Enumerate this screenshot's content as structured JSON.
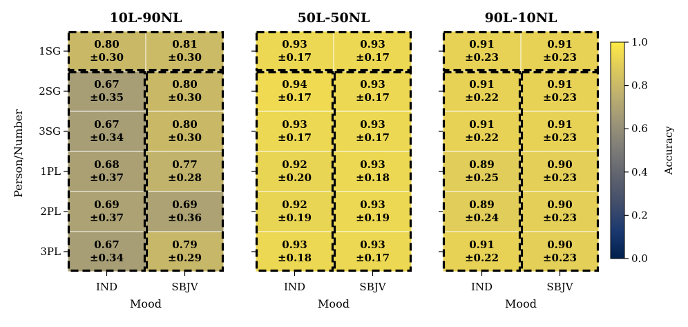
{
  "chart_data": {
    "type": "heatmap",
    "ylabel": "Person/Number",
    "xlabel": "Mood",
    "colorbar": {
      "label": "Accuracy",
      "range": [
        0.0,
        1.0
      ],
      "ticks": [
        "0.0",
        "0.2",
        "0.4",
        "0.6",
        "0.8",
        "1.0"
      ],
      "tick_values": [
        0.0,
        0.2,
        0.4,
        0.6,
        0.8,
        1.0
      ],
      "colormap": "cividis"
    },
    "rows": [
      "1SG",
      "2SG",
      "3SG",
      "1PL",
      "2PL",
      "3PL"
    ],
    "columns": [
      "IND",
      "SBJV"
    ],
    "panels": [
      {
        "title": "10L-90NL",
        "means": [
          [
            0.8,
            0.81
          ],
          [
            0.67,
            0.8
          ],
          [
            0.67,
            0.8
          ],
          [
            0.68,
            0.77
          ],
          [
            0.69,
            0.69
          ],
          [
            0.67,
            0.79
          ]
        ],
        "cells": [
          [
            [
              "0.80",
              "±0.30"
            ],
            [
              "0.81",
              "±0.30"
            ]
          ],
          [
            [
              "0.67",
              "±0.35"
            ],
            [
              "0.80",
              "±0.30"
            ]
          ],
          [
            [
              "0.67",
              "±0.34"
            ],
            [
              "0.80",
              "±0.30"
            ]
          ],
          [
            [
              "0.68",
              "±0.37"
            ],
            [
              "0.77",
              "±0.28"
            ]
          ],
          [
            [
              "0.69",
              "±0.37"
            ],
            [
              "0.69",
              "±0.36"
            ]
          ],
          [
            [
              "0.67",
              "±0.34"
            ],
            [
              "0.79",
              "±0.29"
            ]
          ]
        ]
      },
      {
        "title": "50L-50NL",
        "means": [
          [
            0.93,
            0.93
          ],
          [
            0.94,
            0.93
          ],
          [
            0.93,
            0.93
          ],
          [
            0.92,
            0.93
          ],
          [
            0.92,
            0.93
          ],
          [
            0.93,
            0.93
          ]
        ],
        "cells": [
          [
            [
              "0.93",
              "±0.17"
            ],
            [
              "0.93",
              "±0.17"
            ]
          ],
          [
            [
              "0.94",
              "±0.17"
            ],
            [
              "0.93",
              "±0.17"
            ]
          ],
          [
            [
              "0.93",
              "±0.17"
            ],
            [
              "0.93",
              "±0.17"
            ]
          ],
          [
            [
              "0.92",
              "±0.20"
            ],
            [
              "0.93",
              "±0.18"
            ]
          ],
          [
            [
              "0.92",
              "±0.19"
            ],
            [
              "0.93",
              "±0.19"
            ]
          ],
          [
            [
              "0.93",
              "±0.18"
            ],
            [
              "0.93",
              "±0.17"
            ]
          ]
        ]
      },
      {
        "title": "90L-10NL",
        "means": [
          [
            0.91,
            0.91
          ],
          [
            0.91,
            0.91
          ],
          [
            0.91,
            0.91
          ],
          [
            0.89,
            0.9
          ],
          [
            0.89,
            0.9
          ],
          [
            0.91,
            0.9
          ]
        ],
        "cells": [
          [
            [
              "0.91",
              "±0.23"
            ],
            [
              "0.91",
              "±0.23"
            ]
          ],
          [
            [
              "0.91",
              "±0.22"
            ],
            [
              "0.91",
              "±0.23"
            ]
          ],
          [
            [
              "0.91",
              "±0.22"
            ],
            [
              "0.91",
              "±0.23"
            ]
          ],
          [
            [
              "0.89",
              "±0.25"
            ],
            [
              "0.90",
              "±0.23"
            ]
          ],
          [
            [
              "0.89",
              "±0.24"
            ],
            [
              "0.90",
              "±0.23"
            ]
          ],
          [
            [
              "0.91",
              "±0.22"
            ],
            [
              "0.90",
              "±0.23"
            ]
          ]
        ]
      }
    ]
  }
}
